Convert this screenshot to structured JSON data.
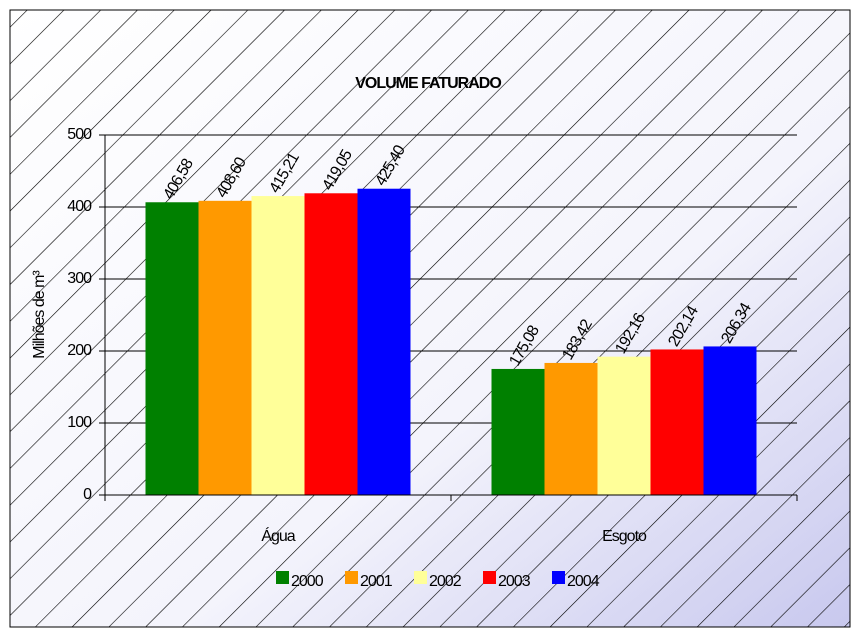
{
  "chart_data": {
    "type": "bar",
    "title": "VOLUME FATURADO",
    "y_label": "Milhões de m³",
    "categories": [
      "Água",
      "Esgoto"
    ],
    "series": [
      {
        "name": "2000",
        "color": "#008000",
        "values": [
          406.58,
          175.08
        ],
        "value_labels": [
          "406,58",
          "175,08"
        ]
      },
      {
        "name": "2001",
        "color": "#ff9900",
        "values": [
          408.6,
          183.42
        ],
        "value_labels": [
          "408,60",
          "183,42"
        ]
      },
      {
        "name": "2002",
        "color": "#ffff99",
        "values": [
          415.21,
          192.16
        ],
        "value_labels": [
          "415,21",
          "192,16"
        ]
      },
      {
        "name": "2003",
        "color": "#ff0000",
        "values": [
          419.05,
          202.14
        ],
        "value_labels": [
          "419,05",
          "202,14"
        ]
      },
      {
        "name": "2004",
        "color": "#0000ff",
        "values": [
          425.4,
          206.34
        ],
        "value_labels": [
          "425,40",
          "206,34"
        ]
      }
    ],
    "ylim": [
      0,
      500
    ],
    "yticks": [
      0,
      100,
      200,
      300,
      400,
      500
    ],
    "grid": true,
    "legend": "bottom"
  }
}
